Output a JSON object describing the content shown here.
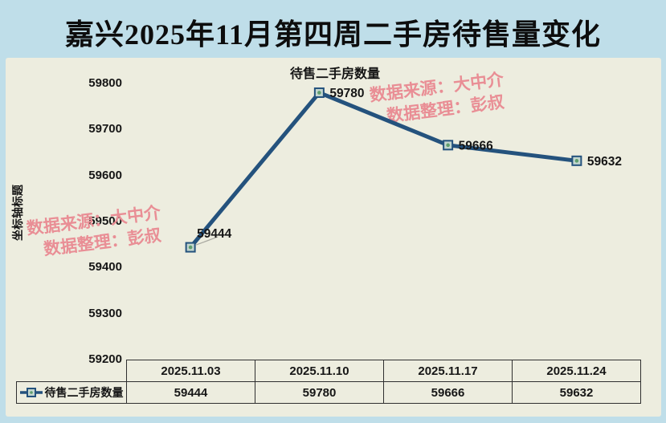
{
  "window": {
    "title": "嘉兴2025年11月第四周二手房待售量变化"
  },
  "watermarks": {
    "source": "数据来源：大中介",
    "prepared_by": "数据整理：彭叔"
  },
  "axis": {
    "y_title": "坐标轴标题"
  },
  "chart_data": {
    "type": "line",
    "title": "待售二手房数量",
    "categories": [
      "2025.11.03",
      "2025.11.10",
      "2025.11.17",
      "2025.11.24"
    ],
    "series": [
      {
        "name": "待售二手房数量",
        "values": [
          59444,
          59780,
          59666,
          59632
        ]
      }
    ],
    "xlabel": "",
    "ylabel": "坐标轴标题",
    "ylim": [
      59200,
      59800
    ],
    "y_ticks": [
      59800,
      59700,
      59600,
      59500,
      59400,
      59300,
      59200
    ],
    "grid": false,
    "data_labels": true,
    "legend_position": "data-table-row-header"
  },
  "colors": {
    "background": "#bfdee9",
    "panel": "#ededdf",
    "line": "#24527d",
    "marker_fill": "#c3d6cf",
    "marker_dot": "#5f9e6e",
    "watermark": "#e98e95",
    "text": "#161616",
    "table_border": "#2f2f2f",
    "leader": "#a8a8a0"
  }
}
